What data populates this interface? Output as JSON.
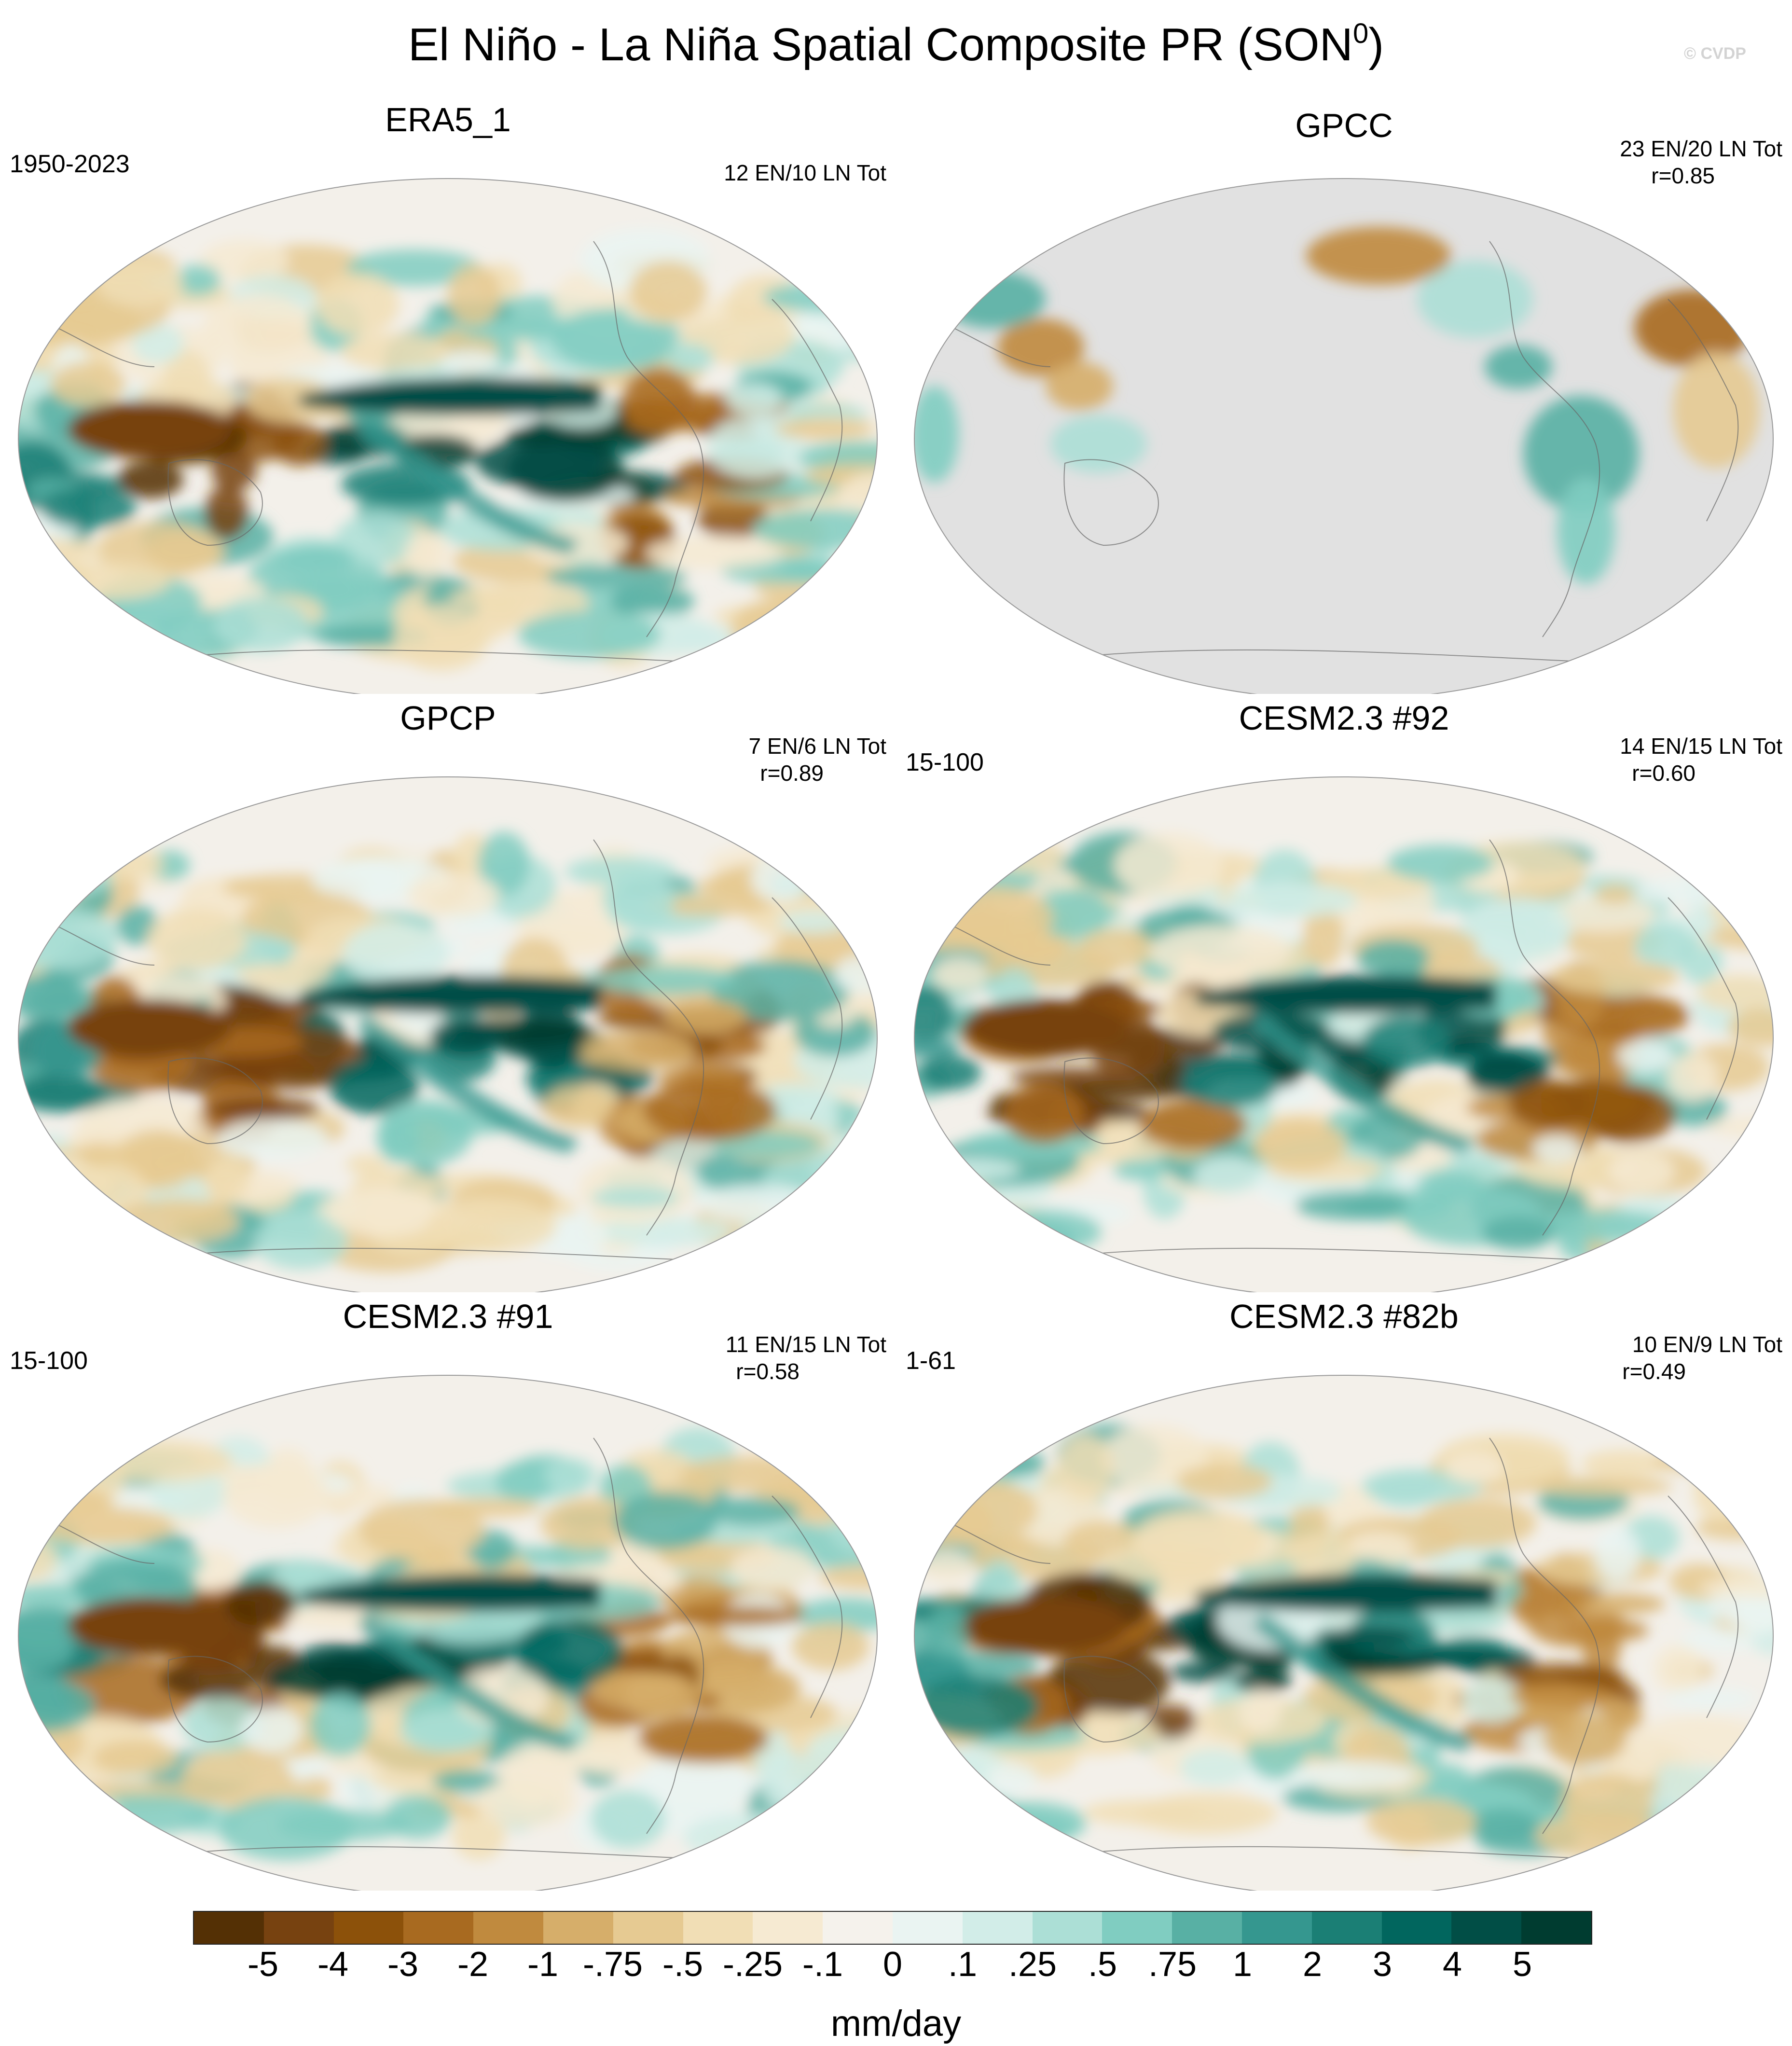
{
  "figure": {
    "title_main": "El Niño - La Niña Spatial Composite PR (SON",
    "title_sup": "0",
    "title_end": ")",
    "watermark": "© CVDP",
    "units": "mm/day"
  },
  "panels": [
    {
      "title": "ERA5_1",
      "left_label": "1950-2023",
      "stats_line1": "12 EN/10 LN Tot",
      "stats_line2": "",
      "land_only": false
    },
    {
      "title": "GPCC",
      "left_label": "",
      "stats_line1": "23 EN/20 LN Tot",
      "stats_line2": "r=0.85",
      "land_only": true
    },
    {
      "title": "GPCP",
      "left_label": "",
      "stats_line1": "7 EN/6 LN Tot",
      "stats_line2": "r=0.89",
      "land_only": false
    },
    {
      "title": "CESM2.3 #92",
      "left_label": "15-100",
      "stats_line1": "14 EN/15 LN Tot",
      "stats_line2": "r=0.60",
      "land_only": false
    },
    {
      "title": "CESM2.3 #91",
      "left_label": "15-100",
      "stats_line1": "11 EN/15 LN Tot",
      "stats_line2": "r=0.58",
      "land_only": false
    },
    {
      "title": "CESM2.3 #82b",
      "left_label": "1-61",
      "stats_line1": "10 EN/9 LN Tot",
      "stats_line2": "r=0.49",
      "land_only": false
    }
  ],
  "colorbar": {
    "labels": [
      "-5",
      "-4",
      "-3",
      "-2",
      "-1",
      "-.75",
      "-.5",
      "-.25",
      "-.1",
      "0",
      ".1",
      ".25",
      ".5",
      ".75",
      "1",
      "2",
      "3",
      "4",
      "5"
    ],
    "colors": [
      "#543005",
      "#774210",
      "#8c510a",
      "#a86a20",
      "#c08a3e",
      "#d6ae6a",
      "#e6ca92",
      "#f1deb5",
      "#f6ead2",
      "#f5f2ec",
      "#eaf4f2",
      "#d2ede8",
      "#acdfd6",
      "#80cdc1",
      "#58b0a4",
      "#35978f",
      "#1b7f75",
      "#01665e",
      "#014e46",
      "#003c30"
    ]
  }
}
